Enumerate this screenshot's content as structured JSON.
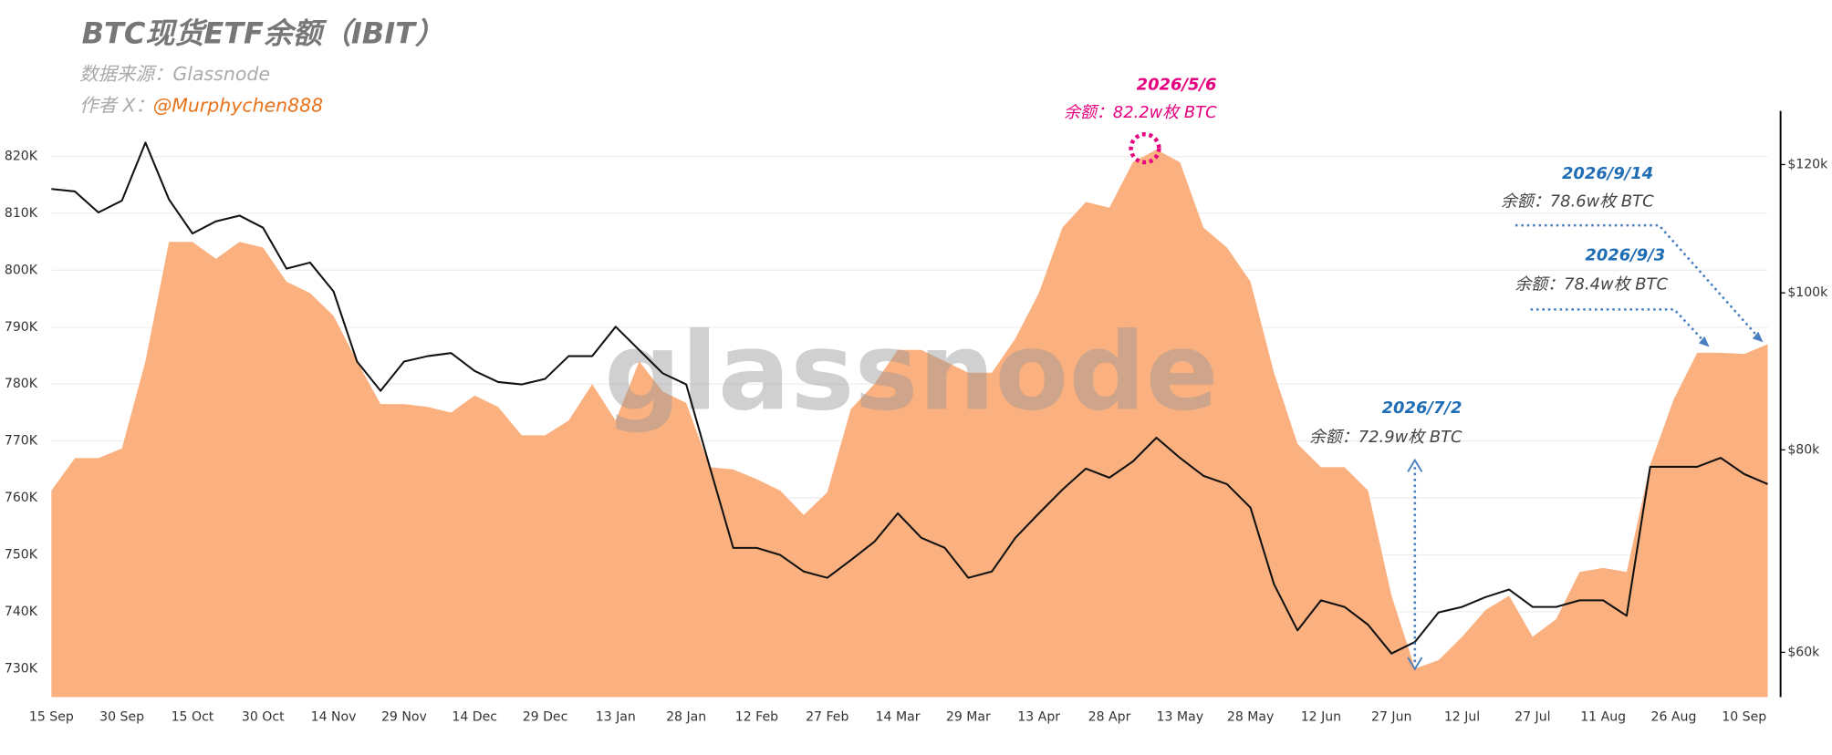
{
  "chart_data": {
    "type": "combo",
    "title": "BTC现货ETF余额（IBIT）",
    "source": "数据来源：Glassnode",
    "author_label": "作者 X：",
    "author": "@Murphychen888",
    "watermark": "glassnode",
    "categories": [
      "15 Sep",
      null,
      null,
      "30 Sep",
      null,
      null,
      "15 Oct",
      null,
      null,
      "30 Oct",
      null,
      null,
      "14 Nov",
      null,
      null,
      "29 Nov",
      null,
      null,
      "14 Dec",
      null,
      null,
      "29 Dec",
      null,
      null,
      "13 Jan",
      null,
      null,
      "28 Jan",
      null,
      null,
      "12 Feb",
      null,
      null,
      "27 Feb",
      null,
      null,
      "14 Mar",
      null,
      null,
      "29 Mar",
      null,
      null,
      "13 Apr",
      null,
      null,
      "28 Apr",
      null,
      null,
      "13 May",
      null,
      null,
      "28 May",
      null,
      null,
      "12 Jun",
      null,
      null,
      "27 Jun",
      null,
      null,
      "12 Jul",
      null,
      null,
      "27 Jul",
      null,
      null,
      "11 Aug",
      null,
      null,
      "26 Aug",
      null,
      null,
      "10 Sep",
      null
    ],
    "series": [
      {
        "type": "area",
        "color": "#fbb07f",
        "values": [
          761.3,
          767,
          767,
          768.7,
          784,
          805,
          805,
          802,
          805,
          804,
          798,
          796,
          792,
          784,
          776.5,
          776.5,
          776,
          775,
          778,
          776,
          771,
          771,
          773.6,
          780,
          773.6,
          784,
          778.7,
          776.7,
          765.4,
          765,
          763.3,
          761.3,
          757,
          761,
          775.6,
          780,
          786,
          786,
          784,
          782,
          782,
          788,
          796,
          807.5,
          812,
          811,
          819,
          821.2,
          819,
          807.5,
          804,
          798,
          782,
          769.5,
          765.4,
          765.4,
          761.3,
          742.8,
          730,
          731.5,
          735.6,
          740.3,
          742.8,
          735.6,
          738.7,
          747,
          747.7,
          747,
          765.8,
          777.3,
          785.5,
          785.5,
          785.3,
          787
        ]
      },
      {
        "type": "line",
        "axis": "y2",
        "color": "#111111",
        "values": [
          115.9,
          115.5,
          112.1,
          114.0,
          123.8,
          114.2,
          108.8,
          110.7,
          111.6,
          109.7,
          103.5,
          104.4,
          100.2,
          90.7,
          87.0,
          90.7,
          91.4,
          91.8,
          89.5,
          88.1,
          87.8,
          88.5,
          91.4,
          91.4,
          95.3,
          92.2,
          89.2,
          87.8,
          78.1,
          69.6,
          69.6,
          68.9,
          67.3,
          66.7,
          68.4,
          70.2,
          73.1,
          70.6,
          69.6,
          66.7,
          67.3,
          70.6,
          73.1,
          75.6,
          77.9,
          76.9,
          78.7,
          81.4,
          79.1,
          77.1,
          76.2,
          73.7,
          66.1,
          61.9,
          64.6,
          64.0,
          62.4,
          59.9,
          60.9,
          63.5,
          64.0,
          64.9,
          65.6,
          64.0,
          64.0,
          64.6,
          64.6,
          63.2,
          78.1,
          78.1,
          78.1,
          79.1,
          77.3,
          76.2
        ]
      }
    ],
    "ylim": [
      725,
      828
    ],
    "yticks": [
      {
        "value": 730,
        "label": "730K"
      },
      {
        "value": 740,
        "label": "740K"
      },
      {
        "value": 750,
        "label": "750K"
      },
      {
        "value": 760,
        "label": "760K"
      },
      {
        "value": 770,
        "label": "770K"
      },
      {
        "value": 780,
        "label": "780K"
      },
      {
        "value": 790,
        "label": "790K"
      },
      {
        "value": 800,
        "label": "800K"
      },
      {
        "value": 810,
        "label": "810K"
      },
      {
        "value": 820,
        "label": "820K"
      }
    ],
    "y2lim": [
      56.3,
      129.5
    ],
    "y2scale": "log",
    "y2ticks": [
      {
        "value": 60,
        "label": "$60k"
      },
      {
        "value": 80,
        "label": "$80k"
      },
      {
        "value": 100,
        "label": "$100k"
      },
      {
        "value": 120,
        "label": "$120k"
      }
    ],
    "grid": true,
    "annotations": [
      {
        "date": "2026/5/6",
        "text": "余额：82.2w枚 BTC",
        "color": "#e4007f"
      },
      {
        "date": "2026/9/14",
        "text": "余额：78.6w枚 BTC",
        "color": "#1f6db5"
      },
      {
        "date": "2026/9/3",
        "text": "余额：78.4w枚 BTC",
        "color": "#1f6db5"
      },
      {
        "date": "2026/7/2",
        "text": "余额：72.9w枚 BTC",
        "color": "#1f6db5"
      }
    ]
  }
}
